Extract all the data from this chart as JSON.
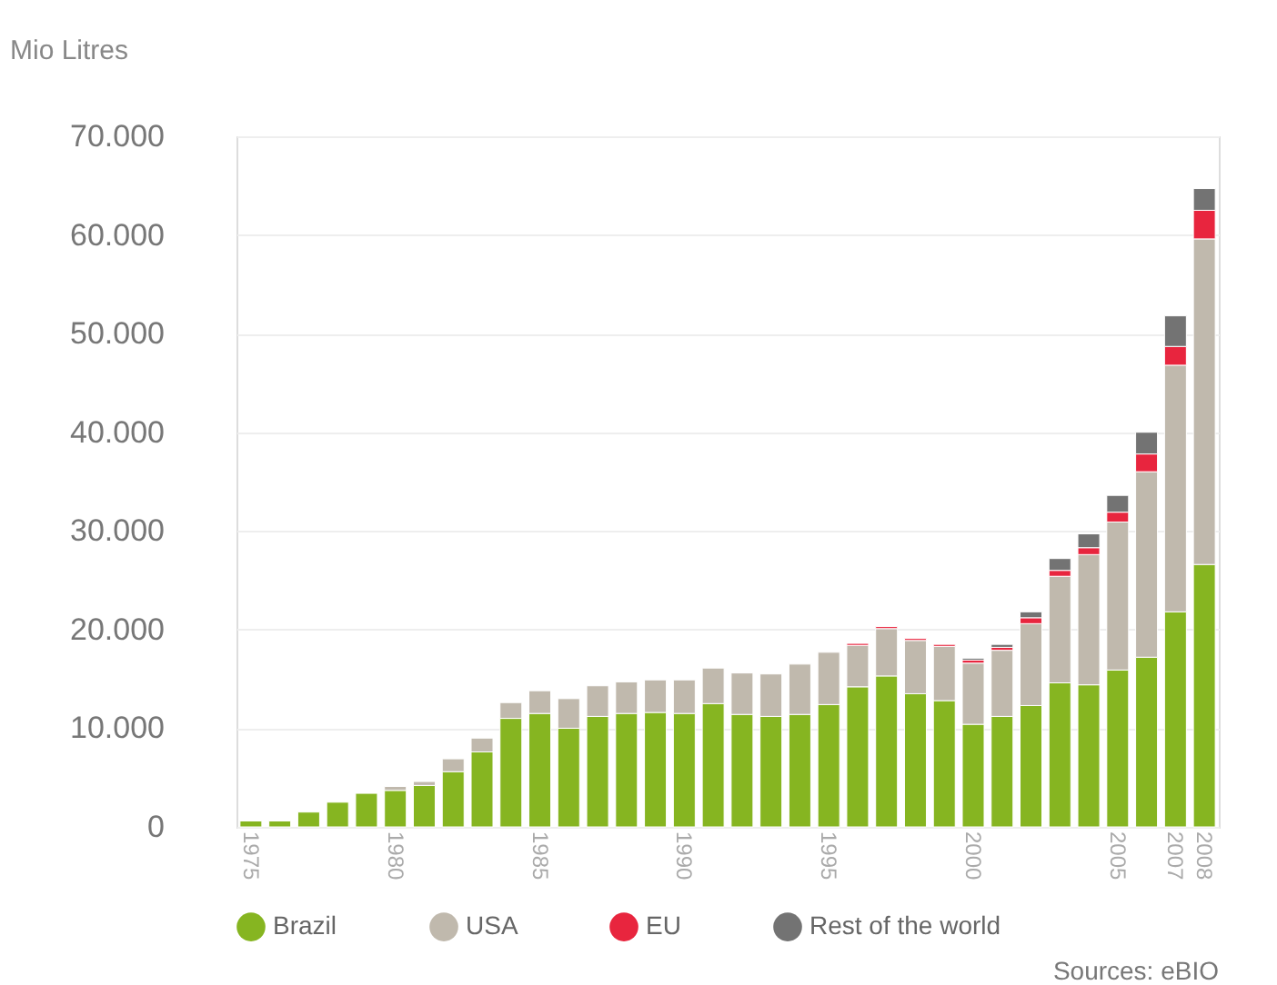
{
  "chart_data": {
    "type": "bar",
    "stacked": true,
    "ylabel": "Mio Litres",
    "categories": [
      "1975",
      null,
      null,
      null,
      null,
      "1980",
      null,
      null,
      null,
      null,
      "1985",
      null,
      null,
      null,
      null,
      "1990",
      null,
      null,
      null,
      null,
      "1995",
      null,
      null,
      null,
      null,
      "2000",
      null,
      null,
      null,
      null,
      "2005",
      null,
      "2007",
      "2008"
    ],
    "series": [
      {
        "name": "Brazil",
        "color": "#86b521",
        "values": [
          600,
          600,
          1500,
          2500,
          3400,
          3700,
          4200,
          5600,
          7600,
          11000,
          11500,
          10000,
          11200,
          11500,
          11600,
          11500,
          12500,
          11400,
          11200,
          11400,
          12400,
          14200,
          15300,
          13500,
          12800,
          10400,
          11200,
          12300,
          14600,
          14400,
          15900,
          17200,
          21800,
          26600
        ]
      },
      {
        "name": "USA",
        "color": "#c0b9ad",
        "values": [
          null,
          null,
          null,
          null,
          null,
          400,
          400,
          1300,
          1400,
          1600,
          2300,
          3000,
          3100,
          3200,
          3300,
          3400,
          3600,
          4200,
          4300,
          5100,
          5300,
          4200,
          4800,
          5400,
          5500,
          6200,
          6700,
          8300,
          10800,
          13200,
          15000,
          18800,
          25000,
          33000
        ]
      },
      {
        "name": "EU",
        "color": "#e8253e",
        "values": [
          null,
          null,
          null,
          null,
          null,
          null,
          null,
          null,
          null,
          null,
          null,
          null,
          null,
          null,
          null,
          null,
          null,
          null,
          null,
          null,
          null,
          200,
          200,
          200,
          200,
          300,
          300,
          600,
          600,
          700,
          1000,
          1800,
          1900,
          2900
        ]
      },
      {
        "name": "Rest of the world",
        "color": "#737373",
        "values": [
          null,
          null,
          null,
          null,
          null,
          null,
          null,
          null,
          null,
          null,
          null,
          null,
          null,
          null,
          null,
          null,
          null,
          null,
          null,
          null,
          null,
          null,
          null,
          null,
          null,
          200,
          300,
          600,
          1200,
          1400,
          1700,
          2200,
          3100,
          2200
        ]
      }
    ],
    "ylim": [
      0,
      70000
    ],
    "yticks": [
      {
        "value": 0,
        "label": "0"
      },
      {
        "value": 10000,
        "label": "10.000"
      },
      {
        "value": 20000,
        "label": "20.000"
      },
      {
        "value": 30000,
        "label": "30.000"
      },
      {
        "value": 40000,
        "label": "40.000"
      },
      {
        "value": 50000,
        "label": "50.000"
      },
      {
        "value": 60000,
        "label": "60.000"
      },
      {
        "value": 70000,
        "label": "70.000"
      }
    ],
    "grid": "y",
    "legend": "bottom",
    "annotations": [
      "Sources: eBIO"
    ]
  }
}
